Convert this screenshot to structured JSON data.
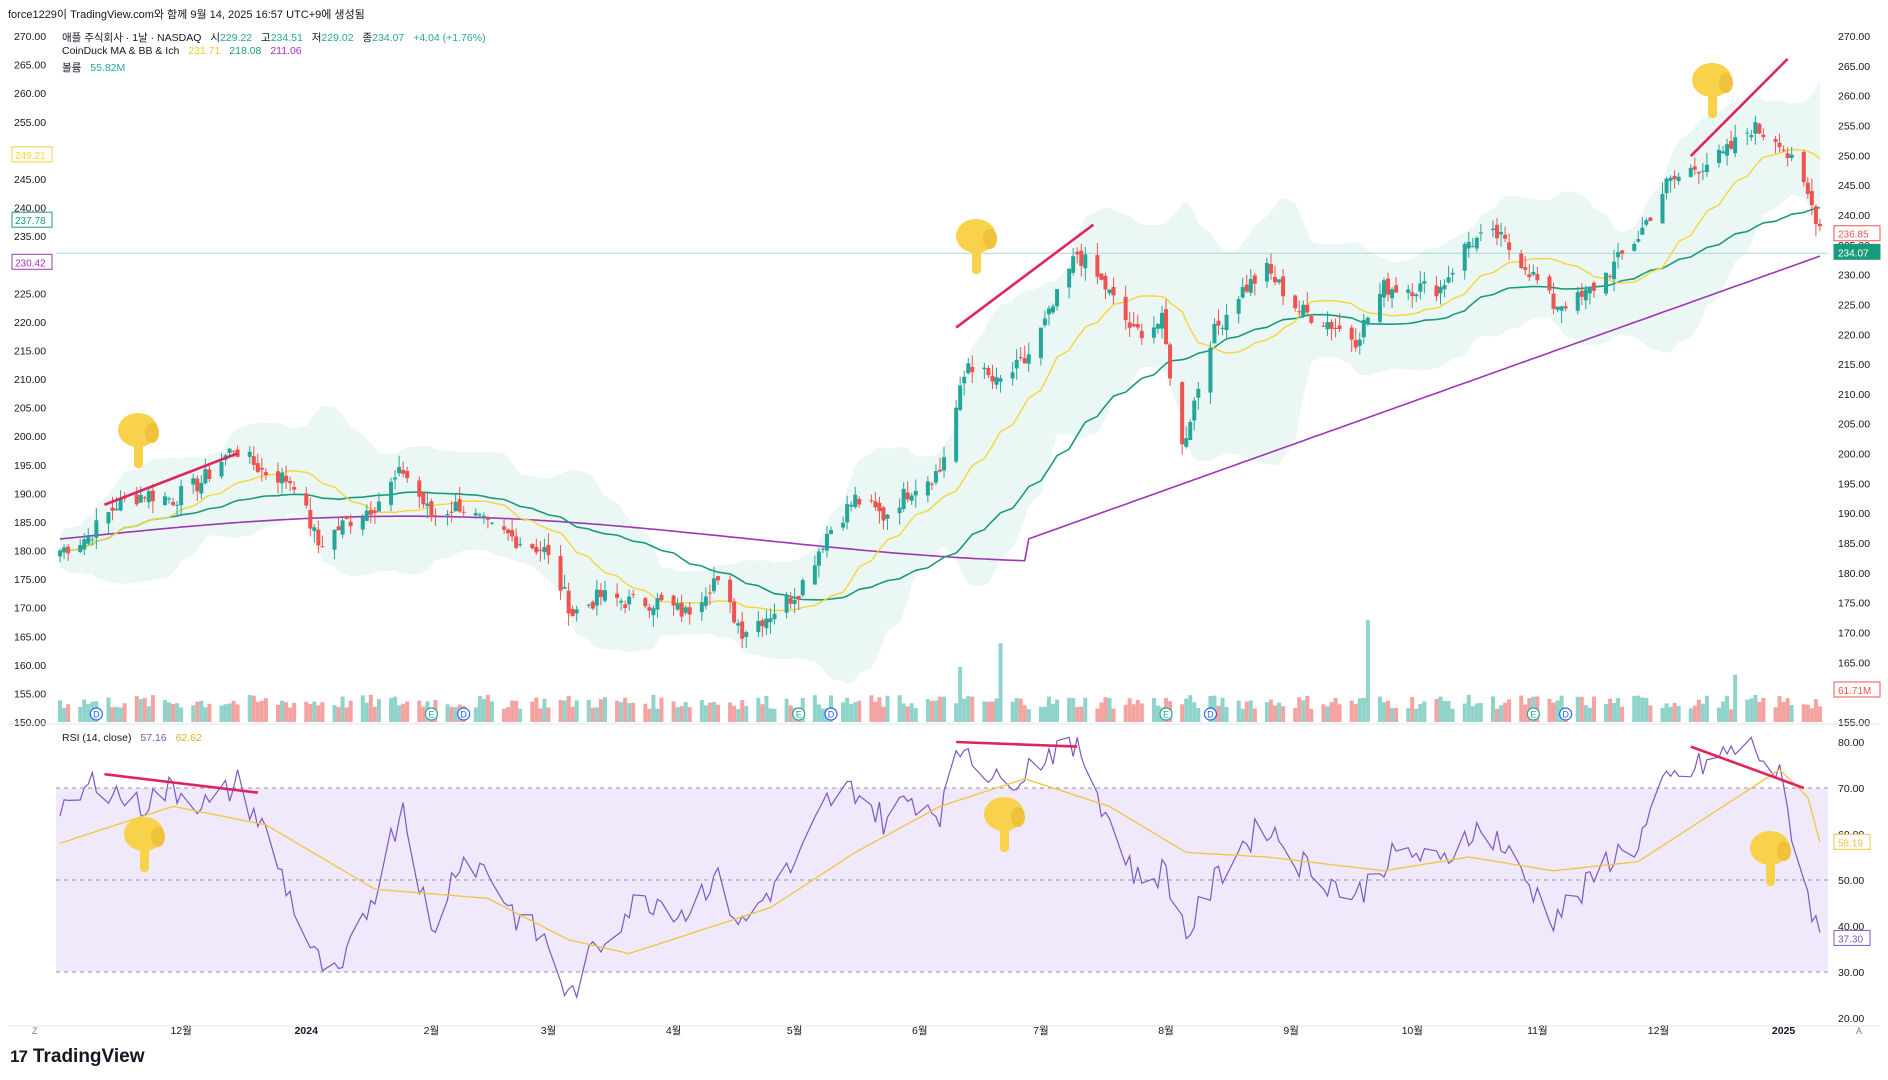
{
  "header": {
    "publisher_line": "force1229이 TradingView.com와 함께 9월 14, 2025 16:57 UTC+9에 생성됨",
    "symbol": "애플 주식회사 · 1날 · NASDAQ",
    "ohlc": {
      "o_label": "시",
      "o": "229.22",
      "h_label": "고",
      "h": "234.51",
      "l_label": "저",
      "l": "229.02",
      "c_label": "종",
      "c": "234.07",
      "change": "+4.04 (+1.76%)"
    },
    "indicator_name": "CoinDuck MA & BB & Ich",
    "indicator_values": [
      "231.71",
      "218.08",
      "211.06"
    ],
    "volume_label": "볼륨",
    "volume_value": "55.82M",
    "rsi_name": "RSI (14, close)",
    "rsi_values": [
      "57.16",
      "62.62"
    ]
  },
  "brand": {
    "name": "TradingView",
    "logo": "17"
  },
  "colors": {
    "up": "#26a69a",
    "down": "#ef5350",
    "vol_up": "#8fd3cb",
    "vol_down": "#f4a3a1",
    "ma_short": "#f5d63a",
    "ma_mid": "#1a9a7d",
    "ma_long": "#9c36b5",
    "bb_fill": "#e3f4f0",
    "rsi_line": "#7e57c2",
    "rsi_ma": "#f2c440",
    "rsi_band": "#efe9fb",
    "divergence": "#e0255e",
    "hand": "#f7d24a"
  },
  "chart_data": [
    {
      "type": "candlestick",
      "title": "애플 주식회사 · 1날 · NASDAQ",
      "y_ticks": [
        "270.00",
        "265.00",
        "260.00",
        "255.00",
        "250.00",
        "245.00",
        "240.00",
        "235.00",
        "230.00",
        "225.00",
        "220.00",
        "215.00",
        "210.00",
        "205.00",
        "200.00",
        "195.00",
        "190.00",
        "185.00",
        "180.00",
        "175.00",
        "170.00",
        "165.00",
        "160.00",
        "155.00",
        "150.00"
      ],
      "right_y_ticks": [
        "270.00",
        "265.00",
        "260.00",
        "255.00",
        "250.00",
        "245.00",
        "240.00",
        "235.00",
        "230.00",
        "225.00",
        "220.00",
        "215.00",
        "210.00",
        "205.00",
        "200.00",
        "195.00",
        "190.00",
        "185.00",
        "180.00",
        "175.00",
        "170.00",
        "165.00",
        "160.00",
        "155.00"
      ],
      "ylim_left": [
        150,
        270
      ],
      "ylim_right": [
        155,
        270
      ],
      "x_labels": [
        "12월",
        "2024",
        "2월",
        "3월",
        "4월",
        "5월",
        "6월",
        "7월",
        "8월",
        "9월",
        "10월",
        "11월",
        "12월",
        "2025"
      ],
      "x_label_dates": [
        "2023-12-01",
        "2024-01-01",
        "2024-02-01",
        "2024-03-01",
        "2024-04-01",
        "2024-05-01",
        "2024-06-01",
        "2024-07-01",
        "2024-08-01",
        "2024-09-01",
        "2024-10-01",
        "2024-11-01",
        "2024-12-01",
        "2025-01-01"
      ],
      "price_path": [
        [
          "2023-11-01",
          180
        ],
        [
          "2023-11-08",
          182.5
        ],
        [
          "2023-11-15",
          188
        ],
        [
          "2023-11-22",
          190
        ],
        [
          "2023-11-29",
          189
        ],
        [
          "2023-12-06",
          192
        ],
        [
          "2023-12-14",
          198
        ],
        [
          "2023-12-21",
          194
        ],
        [
          "2023-12-29",
          192
        ],
        [
          "2024-01-04",
          181
        ],
        [
          "2024-01-11",
          185
        ],
        [
          "2024-01-18",
          188
        ],
        [
          "2024-01-25",
          194
        ],
        [
          "2024-02-01",
          186
        ],
        [
          "2024-02-08",
          188
        ],
        [
          "2024-02-15",
          184
        ],
        [
          "2024-02-22",
          182
        ],
        [
          "2024-02-29",
          180
        ],
        [
          "2024-03-07",
          169
        ],
        [
          "2024-03-14",
          172
        ],
        [
          "2024-03-21",
          171
        ],
        [
          "2024-03-28",
          171
        ],
        [
          "2024-04-04",
          169
        ],
        [
          "2024-04-11",
          175
        ],
        [
          "2024-04-18",
          166
        ],
        [
          "2024-04-25",
          169
        ],
        [
          "2024-05-02",
          173
        ],
        [
          "2024-05-09",
          183
        ],
        [
          "2024-05-16",
          189
        ],
        [
          "2024-05-23",
          186
        ],
        [
          "2024-05-30",
          191
        ],
        [
          "2024-06-06",
          194
        ],
        [
          "2024-06-13",
          213
        ],
        [
          "2024-06-20",
          209
        ],
        [
          "2024-06-27",
          213
        ],
        [
          "2024-07-03",
          221
        ],
        [
          "2024-07-10",
          232
        ],
        [
          "2024-07-17",
          226
        ],
        [
          "2024-07-24",
          218
        ],
        [
          "2024-07-31",
          220
        ],
        [
          "2024-08-05",
          198
        ],
        [
          "2024-08-12",
          217
        ],
        [
          "2024-08-19",
          225
        ],
        [
          "2024-08-26",
          229
        ],
        [
          "2024-09-03",
          222
        ],
        [
          "2024-09-10",
          220
        ],
        [
          "2024-09-17",
          217
        ],
        [
          "2024-09-24",
          226
        ],
        [
          "2024-10-01",
          226
        ],
        [
          "2024-10-08",
          226
        ],
        [
          "2024-10-15",
          234
        ],
        [
          "2024-10-22",
          235
        ],
        [
          "2024-10-29",
          230
        ],
        [
          "2024-11-05",
          223
        ],
        [
          "2024-11-12",
          224
        ],
        [
          "2024-11-19",
          229
        ],
        [
          "2024-11-26",
          235
        ],
        [
          "2024-12-03",
          244
        ],
        [
          "2024-12-10",
          247
        ],
        [
          "2024-12-17",
          249
        ],
        [
          "2024-12-24",
          254
        ],
        [
          "2024-12-31",
          252
        ],
        [
          "2025-01-07",
          242
        ],
        [
          "2025-01-10",
          236.85
        ]
      ],
      "volume_spikes_m": [
        [
          "2024-06-11",
          172
        ],
        [
          "2024-06-21",
          246
        ],
        [
          "2024-09-20",
          318
        ],
        [
          "2024-12-20",
          148
        ]
      ],
      "series": [
        {
          "name": "231.71",
          "color": "#f5d63a",
          "note_value": 231.71
        },
        {
          "name": "218.08",
          "color": "#1a9a7d",
          "note_value": 218.08
        },
        {
          "name": "211.06",
          "color": "#9c36b5",
          "note_value": 211.06
        }
      ],
      "price_labels_left": [
        {
          "text": "249.21",
          "value": 249.21,
          "color": "#f5d63a"
        },
        {
          "text": "237.78",
          "value": 237.78,
          "color": "#1a9a7d"
        },
        {
          "text": "230.42",
          "value": 230.42,
          "color": "#9c36b5"
        }
      ],
      "price_labels_right": [
        {
          "text": "236.85",
          "value": 236.85,
          "color": "#ef5350"
        },
        {
          "text": "234.07",
          "value": 234.07,
          "color": "#1a9a7d"
        },
        {
          "text": "61.71M",
          "value": 61.71,
          "color": "#ef5350"
        }
      ],
      "horizontal_line": 232,
      "divergence_lines_price": [
        {
          "from": [
            "2023-11-12",
            188
          ],
          "to": [
            "2023-12-15",
            197
          ]
        },
        {
          "from": [
            "2024-06-10",
            219
          ],
          "to": [
            "2024-07-14",
            237
          ]
        },
        {
          "from": [
            "2024-12-09",
            249
          ],
          "to": [
            "2025-01-02",
            266
          ]
        }
      ],
      "earnings_markers": [
        "2024-02-01",
        "2024-05-02",
        "2024-08-01",
        "2024-10-31"
      ],
      "dividend_markers": [
        "2023-11-10",
        "2024-02-09",
        "2024-05-10",
        "2024-08-12",
        "2024-11-08"
      ],
      "marker_labels": {
        "earnings": "E",
        "dividend": "D"
      }
    },
    {
      "type": "line",
      "title": "RSI (14, close)",
      "y_ticks": [
        "80.00",
        "70.00",
        "60.00",
        "50.00",
        "40.00",
        "30.00",
        "20.00"
      ],
      "ylim": [
        20,
        80
      ],
      "band": [
        30,
        70
      ],
      "rsi_path": [
        [
          "2023-11-01",
          63
        ],
        [
          "2023-11-10",
          72
        ],
        [
          "2023-11-20",
          66
        ],
        [
          "2023-11-29",
          70
        ],
        [
          "2023-12-08",
          66
        ],
        [
          "2023-12-15",
          71
        ],
        [
          "2023-12-22",
          60
        ],
        [
          "2024-01-03",
          33
        ],
        [
          "2024-01-09",
          28
        ],
        [
          "2024-01-18",
          48
        ],
        [
          "2024-01-25",
          67
        ],
        [
          "2024-02-01",
          38
        ],
        [
          "2024-02-08",
          55
        ],
        [
          "2024-02-15",
          52
        ],
        [
          "2024-02-22",
          42
        ],
        [
          "2024-03-01",
          36
        ],
        [
          "2024-03-06",
          24
        ],
        [
          "2024-03-12",
          34
        ],
        [
          "2024-03-21",
          44
        ],
        [
          "2024-03-28",
          46
        ],
        [
          "2024-04-04",
          43
        ],
        [
          "2024-04-11",
          51
        ],
        [
          "2024-04-18",
          40
        ],
        [
          "2024-04-25",
          48
        ],
        [
          "2024-05-02",
          54
        ],
        [
          "2024-05-09",
          67
        ],
        [
          "2024-05-16",
          70
        ],
        [
          "2024-05-23",
          63
        ],
        [
          "2024-05-30",
          68
        ],
        [
          "2024-06-06",
          65
        ],
        [
          "2024-06-12",
          80
        ],
        [
          "2024-06-20",
          71
        ],
        [
          "2024-06-27",
          74
        ],
        [
          "2024-07-05",
          79
        ],
        [
          "2024-07-11",
          78
        ],
        [
          "2024-07-18",
          63
        ],
        [
          "2024-07-25",
          50
        ],
        [
          "2024-08-01",
          52
        ],
        [
          "2024-08-06",
          38
        ],
        [
          "2024-08-12",
          48
        ],
        [
          "2024-08-19",
          57
        ],
        [
          "2024-08-26",
          62
        ],
        [
          "2024-09-03",
          54
        ],
        [
          "2024-09-10",
          50
        ],
        [
          "2024-09-17",
          46
        ],
        [
          "2024-09-24",
          54
        ],
        [
          "2024-10-01",
          56
        ],
        [
          "2024-10-08",
          53
        ],
        [
          "2024-10-15",
          61
        ],
        [
          "2024-10-22",
          59
        ],
        [
          "2024-10-29",
          50
        ],
        [
          "2024-11-05",
          42
        ],
        [
          "2024-11-12",
          47
        ],
        [
          "2024-11-19",
          55
        ],
        [
          "2024-11-26",
          58
        ],
        [
          "2024-12-03",
          71
        ],
        [
          "2024-12-10",
          74
        ],
        [
          "2024-12-17",
          77
        ],
        [
          "2024-12-24",
          80
        ],
        [
          "2024-12-31",
          72
        ],
        [
          "2025-01-07",
          47
        ],
        [
          "2025-01-10",
          37.3
        ]
      ],
      "rsi_ma_path": [
        [
          "2023-11-01",
          58
        ],
        [
          "2023-11-29",
          66
        ],
        [
          "2023-12-22",
          62
        ],
        [
          "2024-01-18",
          48
        ],
        [
          "2024-02-15",
          46
        ],
        [
          "2024-03-06",
          37
        ],
        [
          "2024-03-21",
          34
        ],
        [
          "2024-04-11",
          40
        ],
        [
          "2024-04-25",
          44
        ],
        [
          "2024-05-16",
          56
        ],
        [
          "2024-06-06",
          66
        ],
        [
          "2024-06-27",
          72
        ],
        [
          "2024-07-18",
          66
        ],
        [
          "2024-08-06",
          56
        ],
        [
          "2024-08-26",
          55
        ],
        [
          "2024-09-24",
          52
        ],
        [
          "2024-10-15",
          55
        ],
        [
          "2024-11-05",
          52
        ],
        [
          "2024-11-26",
          54
        ],
        [
          "2024-12-17",
          66
        ],
        [
          "2024-12-31",
          74
        ],
        [
          "2025-01-07",
          68
        ],
        [
          "2025-01-10",
          58.19
        ]
      ],
      "price_labels_right": [
        {
          "text": "58.19",
          "value": 58.19,
          "color": "#f2c440"
        },
        {
          "text": "37.30",
          "value": 37.3,
          "color": "#7e57c2"
        }
      ],
      "divergence_lines_rsi": [
        {
          "from": [
            "2023-11-12",
            73
          ],
          "to": [
            "2023-12-20",
            69
          ]
        },
        {
          "from": [
            "2024-06-10",
            80
          ],
          "to": [
            "2024-07-10",
            79
          ]
        },
        {
          "from": [
            "2024-12-09",
            79
          ],
          "to": [
            "2025-01-06",
            70
          ]
        }
      ]
    }
  ],
  "corner_labels": {
    "left": "Z",
    "right": "A"
  }
}
